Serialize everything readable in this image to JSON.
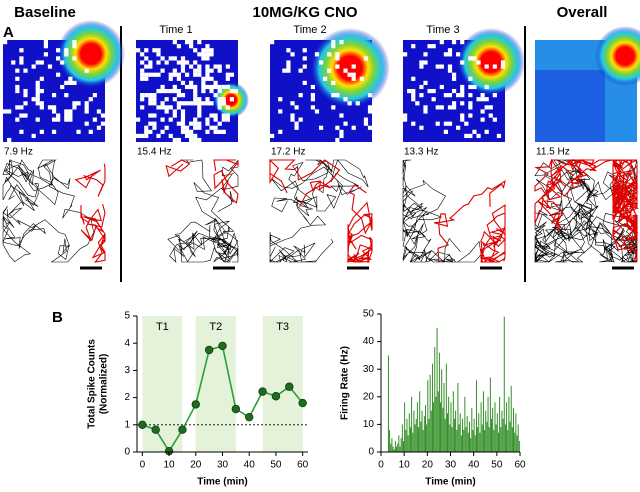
{
  "panel_a": {
    "label": "A",
    "headers": {
      "baseline": "Baseline",
      "cno": "10MG/KG CNO",
      "overall": "Overall"
    },
    "time_labels": [
      "Time 1",
      "Time 2",
      "Time 3"
    ],
    "rates": [
      "7.9 Hz",
      "15.4 Hz",
      "17.2 Hz",
      "13.3 Hz",
      "11.5 Hz"
    ]
  },
  "panel_b": {
    "label": "B"
  },
  "chart_data": [
    {
      "type": "line",
      "x": [
        0,
        5,
        10,
        15,
        20,
        25,
        30,
        35,
        40,
        45,
        50,
        55,
        60
      ],
      "values": [
        1.0,
        0.82,
        0.03,
        0.82,
        1.75,
        3.75,
        3.9,
        1.58,
        1.28,
        2.22,
        2.05,
        2.4,
        1.8
      ],
      "color": "#2e9e3a",
      "marker_color": "#1f6b1f",
      "xlim": [
        -2,
        62
      ],
      "xticks": [
        0,
        10,
        20,
        30,
        40,
        50,
        60
      ],
      "ylim": [
        0,
        5
      ],
      "yticks": [
        0,
        1,
        2,
        3,
        4,
        5
      ],
      "xlabel": "Time (min)",
      "ylabel": [
        "Total Spike Counts",
        "(Normalized)"
      ],
      "regions": [
        {
          "label": "T1",
          "x": [
            0,
            15
          ]
        },
        {
          "label": "T2",
          "x": [
            20,
            35
          ]
        },
        {
          "label": "T3",
          "x": [
            45,
            60
          ]
        }
      ],
      "region_color": "#e3f2d9",
      "hline": 1
    },
    {
      "type": "histogram",
      "bins": [
        0,
        0.5,
        1,
        1.5,
        2,
        2.5,
        3,
        3.5,
        4,
        4.5,
        5,
        5.5,
        6,
        6.5,
        7,
        7.5,
        8,
        8.5,
        9,
        9.5,
        10,
        10.5,
        11,
        11.5,
        12,
        12.5,
        13,
        13.5,
        14,
        14.5,
        15,
        15.5,
        16,
        16.5,
        17,
        17.5,
        18,
        18.5,
        19,
        19.5,
        20,
        20.5,
        21,
        21.5,
        22,
        22.5,
        23,
        23.5,
        24,
        24.5,
        25,
        25.5,
        26,
        26.5,
        27,
        27.5,
        28,
        28.5,
        29,
        29.5,
        30,
        30.5,
        31,
        31.5,
        32,
        32.5,
        33,
        33.5,
        34,
        34.5,
        35,
        35.5,
        36,
        36.5,
        37,
        37.5,
        38,
        38.5,
        39,
        39.5,
        40,
        40.5,
        41,
        41.5,
        42,
        42.5,
        43,
        43.5,
        44,
        44.5,
        45,
        45.5,
        46,
        46.5,
        47,
        47.5,
        48,
        48.5,
        49,
        49.5,
        50,
        50.5,
        51,
        51.5,
        52,
        52.5,
        53,
        53.5,
        54,
        54.5,
        55,
        55.5,
        56,
        56.5,
        57,
        57.5,
        58,
        58.5,
        59,
        59.5,
        60
      ],
      "values": [
        0,
        0,
        0,
        0,
        0,
        0,
        35,
        8,
        3,
        5,
        2,
        1,
        4,
        2,
        3,
        6,
        2,
        5,
        10,
        4,
        18,
        8,
        12,
        6,
        14,
        9,
        20,
        7,
        15,
        10,
        12,
        18,
        9,
        22,
        11,
        15,
        8,
        13,
        17,
        10,
        26,
        12,
        28,
        15,
        32,
        18,
        38,
        20,
        45,
        22,
        36,
        18,
        30,
        16,
        25,
        12,
        32,
        14,
        20,
        10,
        18,
        9,
        22,
        12,
        15,
        8,
        25,
        10,
        14,
        6,
        12,
        8,
        20,
        9,
        13,
        7,
        11,
        5,
        16,
        8,
        12,
        6,
        26,
        9,
        14,
        7,
        18,
        10,
        22,
        8,
        15,
        11,
        20,
        9,
        27,
        12,
        16,
        8,
        18,
        10,
        14,
        7,
        20,
        9,
        15,
        12,
        49,
        10,
        18,
        8,
        20,
        11,
        24,
        9,
        16,
        7,
        14,
        6,
        10,
        4
      ],
      "color": "#2a8a1f",
      "xlim": [
        0,
        60
      ],
      "xticks": [
        0,
        10,
        20,
        30,
        40,
        50,
        60
      ],
      "ylim": [
        0,
        50
      ],
      "yticks": [
        0,
        10,
        20,
        30,
        40,
        50
      ],
      "xlabel": "Time (min)",
      "ylabel": "Firing Rate (Hz)"
    }
  ]
}
